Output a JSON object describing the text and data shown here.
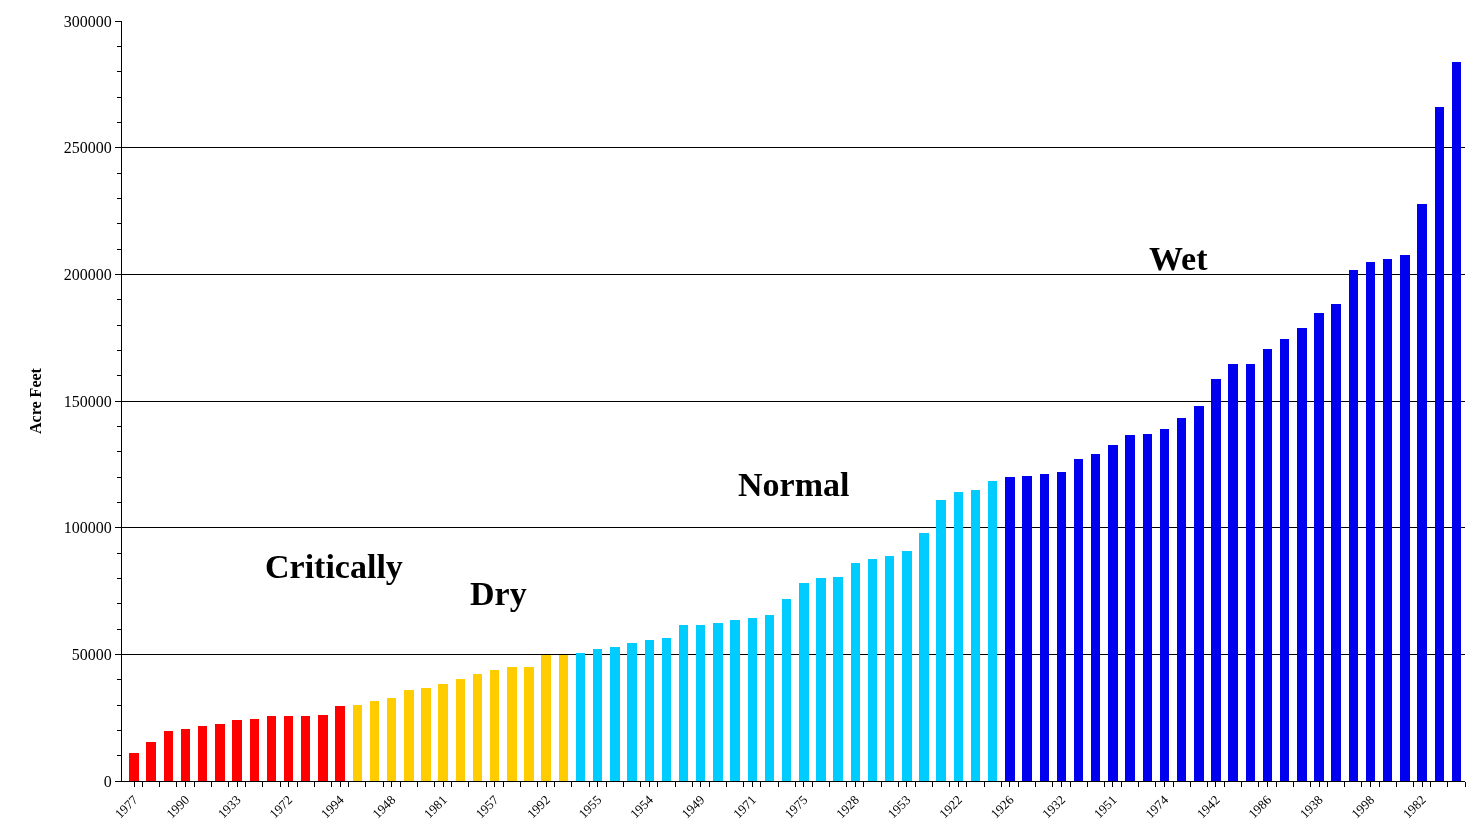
{
  "chart_data": {
    "type": "bar",
    "ylabel": "Acre Feet",
    "categories": [
      "1977",
      null,
      null,
      "1990",
      null,
      null,
      "1933",
      null,
      null,
      "1972",
      null,
      null,
      "1994",
      null,
      null,
      "1948",
      null,
      null,
      "1981",
      null,
      null,
      "1957",
      null,
      null,
      "1992",
      null,
      null,
      "1955",
      null,
      null,
      "1954",
      null,
      null,
      "1949",
      null,
      null,
      "1971",
      null,
      null,
      "1975",
      null,
      null,
      "1928",
      null,
      null,
      "1953",
      null,
      null,
      "1922",
      null,
      null,
      "1926",
      null,
      null,
      "1932",
      null,
      null,
      "1951",
      null,
      null,
      "1974",
      null,
      null,
      "1942",
      null,
      null,
      "1986",
      null,
      null,
      "1938",
      null,
      null,
      "1998",
      null,
      null,
      "1982",
      null,
      null
    ],
    "values": [
      11000,
      15400,
      19700,
      20500,
      21700,
      22500,
      24100,
      24500,
      25700,
      25700,
      25700,
      26000,
      29600,
      30000,
      31600,
      32800,
      35900,
      36700,
      38300,
      40300,
      42200,
      43800,
      45000,
      45000,
      49700,
      49700,
      50500,
      52300,
      52900,
      54400,
      55500,
      56500,
      61700,
      61700,
      62400,
      63700,
      64300,
      65400,
      71800,
      78000,
      80000,
      80600,
      85900,
      87600,
      88700,
      90700,
      97900,
      111100,
      113900,
      114800,
      118500,
      119900,
      120500,
      121100,
      121800,
      127000,
      129100,
      132800,
      136600,
      137000,
      139100,
      143300,
      148100,
      158800,
      164600,
      164600,
      170500,
      174300,
      178900,
      184700,
      188300,
      201700,
      205000,
      206100,
      207500,
      227800,
      265900,
      283900
    ],
    "colors": [
      "#ff0000",
      "#ff0000",
      "#ff0000",
      "#ff0000",
      "#ff0000",
      "#ff0000",
      "#ff0000",
      "#ff0000",
      "#ff0000",
      "#ff0000",
      "#ff0000",
      "#ff0000",
      "#ff0000",
      "#ffcc00",
      "#ffcc00",
      "#ffcc00",
      "#ffcc00",
      "#ffcc00",
      "#ffcc00",
      "#ffcc00",
      "#ffcc00",
      "#ffcc00",
      "#ffcc00",
      "#ffcc00",
      "#ffcc00",
      "#ffcc00",
      "#00ccff",
      "#00ccff",
      "#00ccff",
      "#00ccff",
      "#00ccff",
      "#00ccff",
      "#00ccff",
      "#00ccff",
      "#00ccff",
      "#00ccff",
      "#00ccff",
      "#00ccff",
      "#00ccff",
      "#00ccff",
      "#00ccff",
      "#00ccff",
      "#00ccff",
      "#00ccff",
      "#00ccff",
      "#00ccff",
      "#00ccff",
      "#00ccff",
      "#00ccff",
      "#00ccff",
      "#00ccff",
      "#0000ee",
      "#0000ee",
      "#0000ee",
      "#0000ee",
      "#0000ee",
      "#0000ee",
      "#0000ee",
      "#0000ee",
      "#0000ee",
      "#0000ee",
      "#0000ee",
      "#0000ee",
      "#0000ee",
      "#0000ee",
      "#0000ee",
      "#0000ee",
      "#0000ee",
      "#0000ee",
      "#0000ee",
      "#0000ee",
      "#0000ee",
      "#0000ee",
      "#0000ee",
      "#0000ee",
      "#0000ee",
      "#0000ee",
      "#0000ee"
    ],
    "ylim": [
      0,
      300000
    ],
    "yticks": [
      0,
      50000,
      100000,
      150000,
      200000,
      250000,
      300000
    ],
    "grid": "y",
    "annotations": [
      "Critically",
      "Dry",
      "Normal",
      "Wet"
    ]
  }
}
